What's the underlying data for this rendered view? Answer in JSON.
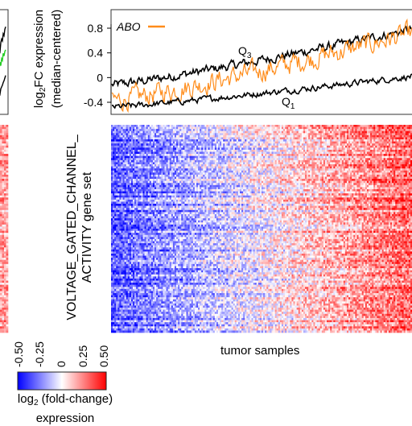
{
  "chart_data": [
    {
      "type": "line",
      "panel": "left-partial-line",
      "series": [
        {
          "color": "#000000",
          "x": [
            0,
            1,
            2,
            3,
            4,
            5,
            6,
            7,
            8,
            9
          ],
          "y": [
            0.55,
            0.62,
            0.6,
            0.7,
            0.74,
            0.72,
            0.8,
            0.78,
            0.85,
            0.88
          ]
        },
        {
          "color": "#22cc22",
          "x": [
            0,
            1,
            2,
            3,
            4,
            5,
            6,
            7,
            8,
            9
          ],
          "y": [
            0.35,
            0.4,
            0.48,
            0.44,
            0.52,
            0.5,
            0.58,
            0.55,
            0.6,
            0.62
          ]
        },
        {
          "color": "#000000",
          "x": [
            0,
            1,
            2,
            3,
            4,
            5,
            6,
            7,
            8,
            9
          ],
          "y": [
            0.1,
            0.14,
            0.12,
            0.18,
            0.2,
            0.22,
            0.25,
            0.27,
            0.3,
            0.33
          ]
        }
      ]
    },
    {
      "type": "line",
      "panel": "top-right-line",
      "ylabel_main": "log",
      "ylabel_sub": "2",
      "ylabel_rest": "FC expression",
      "ylabel_line2": "(median-centered)",
      "yticks": [
        "0.8",
        "0.4",
        "0",
        "-0.4"
      ],
      "ylim": [
        -0.5,
        0.95
      ],
      "legend": "ABO",
      "legend_color": "#ff8c1a",
      "annot_q3": "Q",
      "annot_q3_sub": "3",
      "annot_q1": "Q",
      "annot_q1_sub": "1",
      "series": [
        {
          "name": "Q3",
          "color": "#000000",
          "start": -0.12,
          "end": 0.78,
          "noise": 0.06
        },
        {
          "name": "ABO",
          "color": "#ff8c1a",
          "start": -0.38,
          "end": 0.72,
          "noise": 0.14
        },
        {
          "name": "Q1",
          "color": "#000000",
          "start": -0.48,
          "end": 0.02,
          "noise": 0.04
        }
      ]
    },
    {
      "type": "heatmap",
      "panel": "main-heatmap",
      "ylabel_line1": "VOLTAGE_GATED_CHANNEL_",
      "ylabel_line2": "ACTIVITY gene set",
      "xlabel": "tumor samples",
      "value_range": [
        -0.5,
        0.5
      ],
      "n_rows": 100,
      "n_cols": 180,
      "gradient": "left negative to right positive"
    },
    {
      "type": "heatmap",
      "panel": "left-partial-heatmap",
      "n_rows": 100,
      "n_cols": 4,
      "bias": "positive"
    }
  ],
  "colorbar": {
    "ticks": [
      "-0.50",
      "-0.25",
      "0",
      "0.25",
      "0.50"
    ],
    "colors": {
      "low": "#0000ff",
      "mid": "#ffffff",
      "high": "#ff0000"
    },
    "label_main": "log",
    "label_sub": "2",
    "label_rest": " (fold-change)",
    "label_line2": "expression"
  }
}
